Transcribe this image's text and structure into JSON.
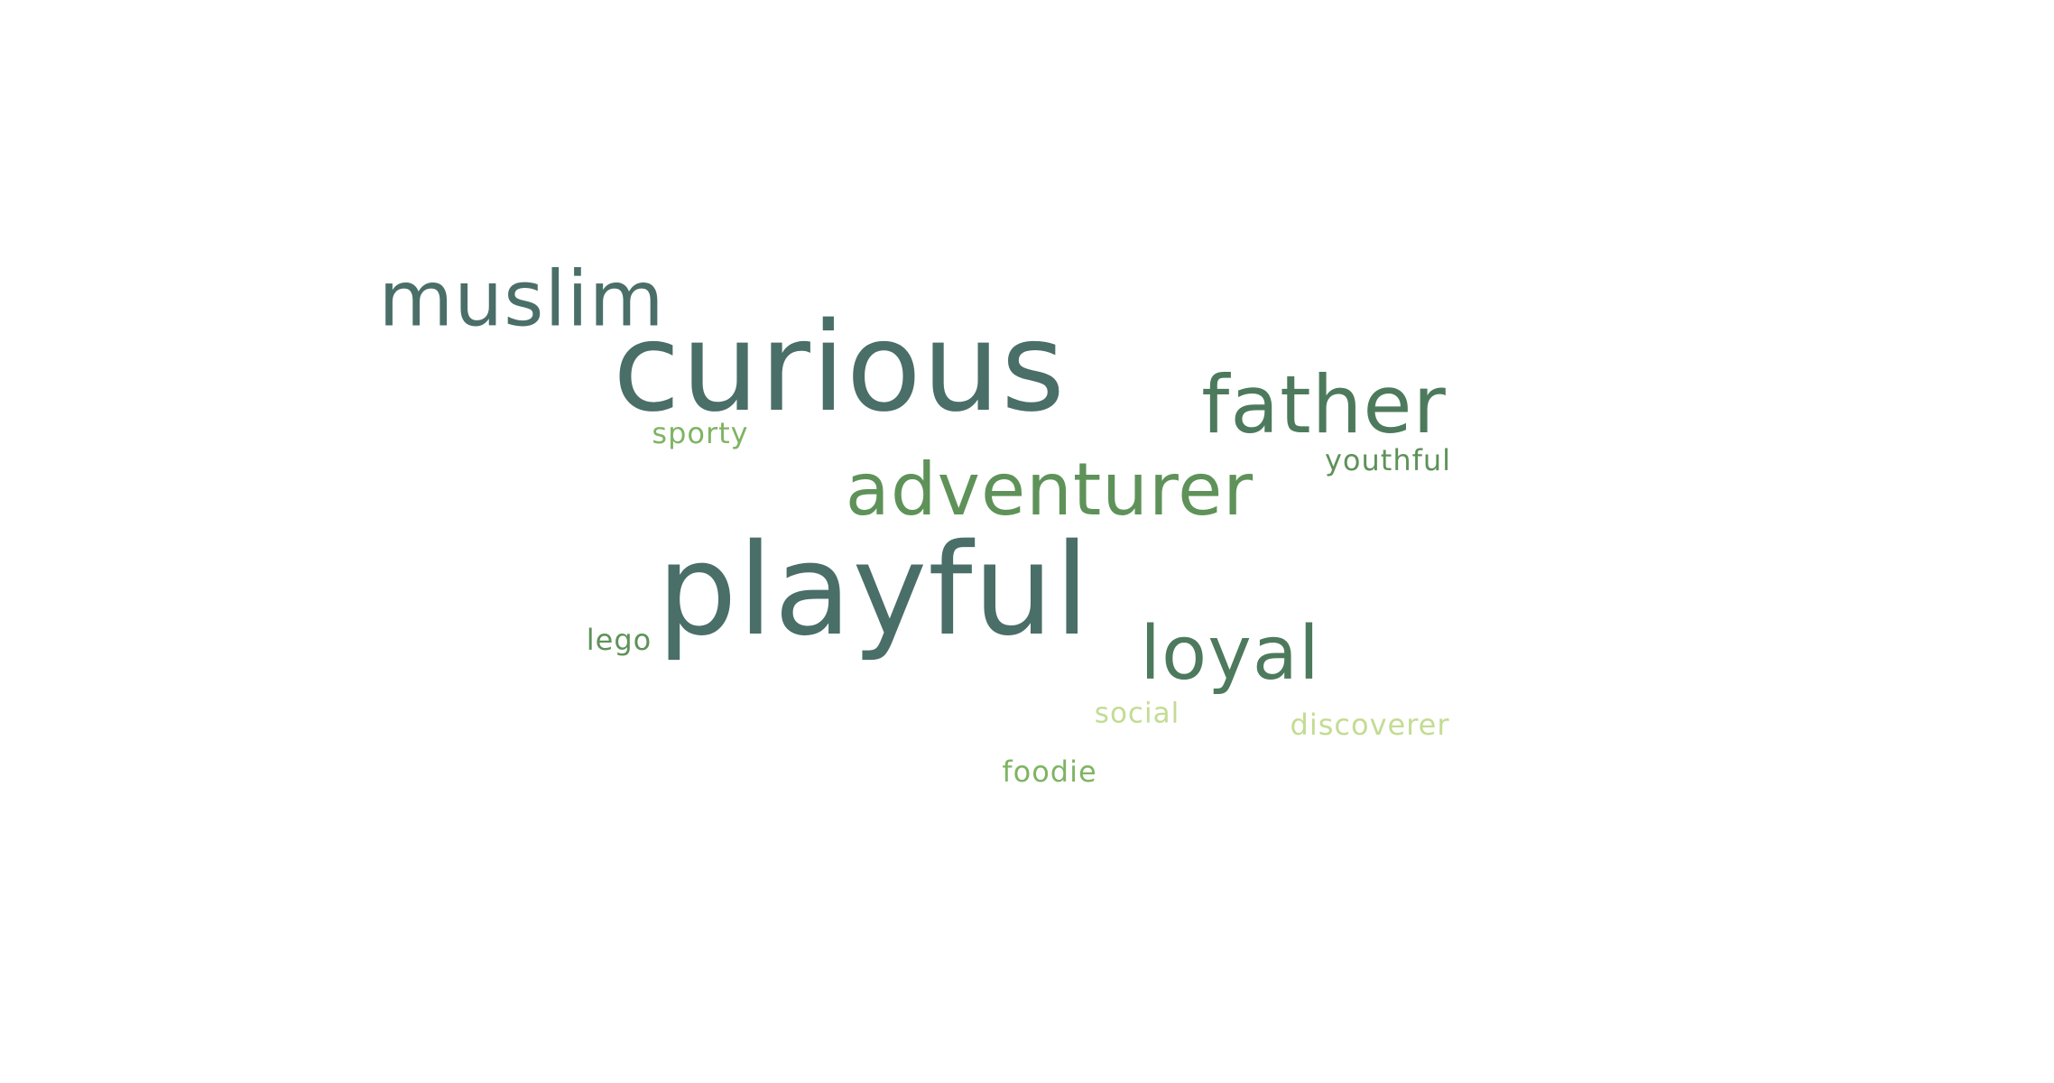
{
  "words": [
    {
      "id": "curious",
      "text": "curious",
      "color": "#4a6e68"
    },
    {
      "id": "playful",
      "text": "playful",
      "color": "#4a6e68"
    },
    {
      "id": "muslim",
      "text": "muslim",
      "color": "#4a6e68"
    },
    {
      "id": "father",
      "text": "father",
      "color": "#4d7a5c"
    },
    {
      "id": "adventurer",
      "text": "adventurer",
      "color": "#5e9259"
    },
    {
      "id": "loyal",
      "text": "loyal",
      "color": "#4d7a5c"
    },
    {
      "id": "youthful",
      "text": "youthful",
      "color": "#5e9259"
    },
    {
      "id": "sporty",
      "text": "sporty",
      "color": "#7fb463"
    },
    {
      "id": "lego",
      "text": "lego",
      "color": "#5e9259"
    },
    {
      "id": "social",
      "text": "social",
      "color": "#c3dc93"
    },
    {
      "id": "discoverer",
      "text": "discoverer",
      "color": "#c3dc93"
    },
    {
      "id": "foodie",
      "text": "foodie",
      "color": "#7fb463"
    }
  ]
}
